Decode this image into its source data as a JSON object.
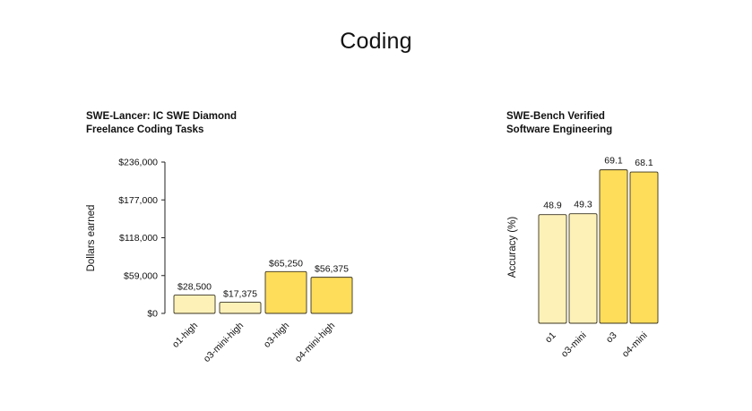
{
  "page": {
    "title": "Coding"
  },
  "colors": {
    "light": "#FDF1B8",
    "dark": "#FEDD5A",
    "stroke": "#3a3420"
  },
  "chart_data": [
    {
      "type": "bar",
      "title_line1": "SWE-Lancer: IC SWE Diamond",
      "title_line2": "Freelance Coding Tasks",
      "ylabel": "Dollars earned",
      "xlabel": "",
      "ylim": [
        0,
        236000
      ],
      "yticks": [
        0,
        59000,
        118000,
        177000,
        236000
      ],
      "ytick_labels": [
        "$0",
        "$59,000",
        "$118,000",
        "$177,000",
        "$236,000"
      ],
      "categories": [
        "o1-high",
        "o3-mini-high",
        "o3-high",
        "o4-mini-high"
      ],
      "values": [
        28500,
        17375,
        65250,
        56375
      ],
      "value_labels": [
        "$28,500",
        "$17,375",
        "$65,250",
        "$56,375"
      ],
      "shades": [
        "light",
        "light",
        "dark",
        "dark"
      ]
    },
    {
      "type": "bar",
      "title_line1": "SWE-Bench Verified",
      "title_line2": "Software Engineering",
      "ylabel": "Accuracy (%)",
      "xlabel": "",
      "ylim": [
        0,
        100
      ],
      "categories": [
        "o1",
        "o3-mini",
        "o3",
        "o4-mini"
      ],
      "values": [
        48.9,
        49.3,
        69.1,
        68.1
      ],
      "value_labels": [
        "48.9",
        "49.3",
        "69.1",
        "68.1"
      ],
      "shades": [
        "light",
        "light",
        "dark",
        "dark"
      ]
    }
  ]
}
